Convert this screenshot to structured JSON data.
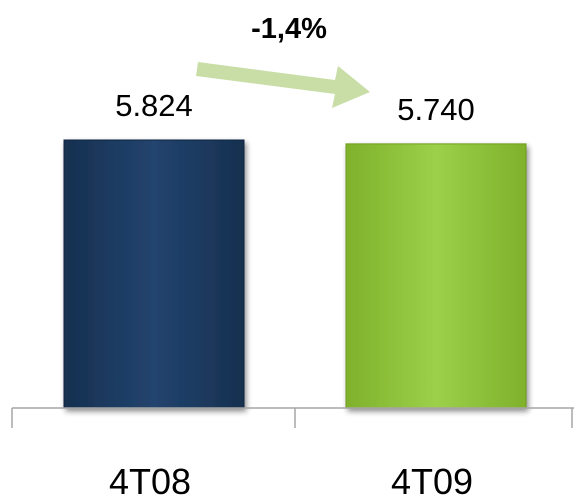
{
  "chart_data": {
    "type": "bar",
    "categories": [
      "4T08",
      "4T09"
    ],
    "values": [
      5824,
      5740
    ],
    "value_labels": [
      "5.824",
      "5.740"
    ],
    "bar_colors": [
      "#1f3b66",
      "#8fc13a"
    ],
    "change_label": "-1,4%",
    "arrow_color": "#c9dea6",
    "axis_color": "#a6a6a6",
    "title": "",
    "xlabel": "",
    "ylabel": "",
    "grid": false,
    "legend": "none"
  }
}
